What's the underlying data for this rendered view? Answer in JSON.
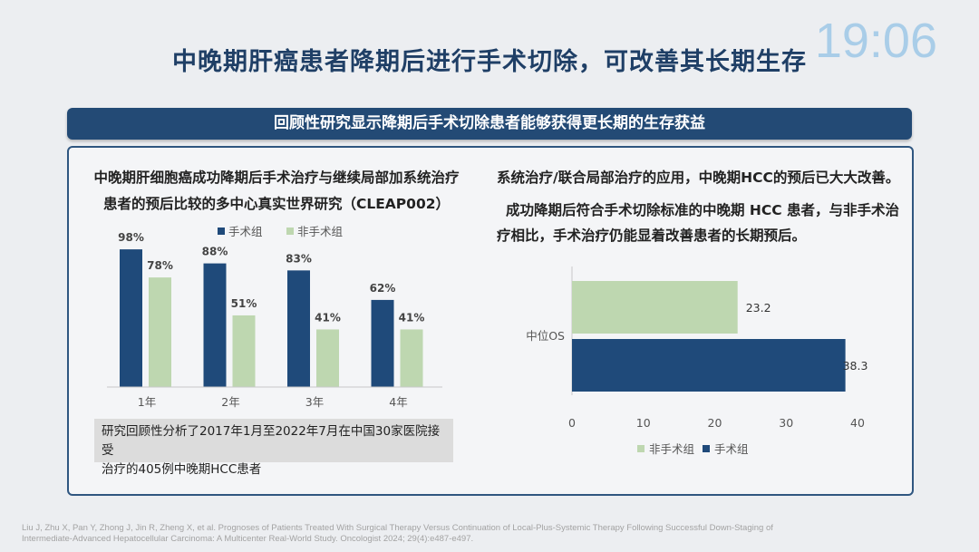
{
  "title": "中晚期肝癌患者降期后进行手术切除，可改善其长期生存",
  "clock": "19:06",
  "banner": "回顾性研究显示降期后手术切除患者能够获得更长期的生存获益",
  "left": {
    "heading_line1": "中晚期肝细胞癌成功降期后手术治疗与继续局部加系统治疗",
    "heading_line2": "患者的预后比较的多中心真实世界研究（CLEAP002）",
    "note_line1": "研究回顾性分析了2017年1月至2022年7月在中国30家医院接受",
    "note_line2": "治疗的405例中晚期HCC患者"
  },
  "right": {
    "text1": "系统治疗/联合局部治疗的应用，中晚期HCC的预后已大大改善。",
    "text2_line1": "成功降期后符合手术切除标准的中晚期 HCC 患者，与非手术治",
    "text2_line2": "疗相比，手术治疗仍能显着改善患者的长期预后。"
  },
  "footnote_line1": "Liu J, Zhu X, Pan Y, Zhong J, Jin R, Zheng X, et al. Prognoses of Patients Treated With Surgical Therapy Versus Continuation of Local-Plus-Systemic Therapy Following Successful Down-Staging of",
  "footnote_line2": "Intermediate-Advanced Hepatocellular Carcinoma: A Multicenter Real-World Study. Oncologist 2024; 29(4):e487-e497.",
  "colors": {
    "surgery": "#1f4a7a",
    "nonsurgery": "#bed7b0",
    "accent": "#234a75"
  },
  "chart_data": [
    {
      "type": "bar",
      "categories": [
        "1年",
        "2年",
        "3年",
        "4年"
      ],
      "series": [
        {
          "name": "手术组",
          "values": [
            98,
            88,
            83,
            62
          ],
          "labels": [
            "98%",
            "88%",
            "83%",
            "62%"
          ],
          "color": "#1f4a7a"
        },
        {
          "name": "非手术组",
          "values": [
            78,
            51,
            41,
            41
          ],
          "labels": [
            "78%",
            "51%",
            "41%",
            "41%"
          ],
          "color": "#bed7b0"
        }
      ],
      "ylim": [
        0,
        100
      ],
      "legend": "top",
      "grid": false
    },
    {
      "type": "bar",
      "orientation": "horizontal",
      "categories": [
        "中位OS"
      ],
      "series": [
        {
          "name": "非手术组",
          "values": [
            23.2
          ],
          "labels": [
            "23.2"
          ],
          "color": "#bed7b0"
        },
        {
          "name": "手术组",
          "values": [
            38.3
          ],
          "labels": [
            "38.3"
          ],
          "color": "#1f4a7a"
        }
      ],
      "xlim": [
        0,
        40
      ],
      "xticks": [
        "0",
        "10",
        "20",
        "30",
        "40"
      ],
      "legend": "bottom",
      "grid": false
    }
  ]
}
